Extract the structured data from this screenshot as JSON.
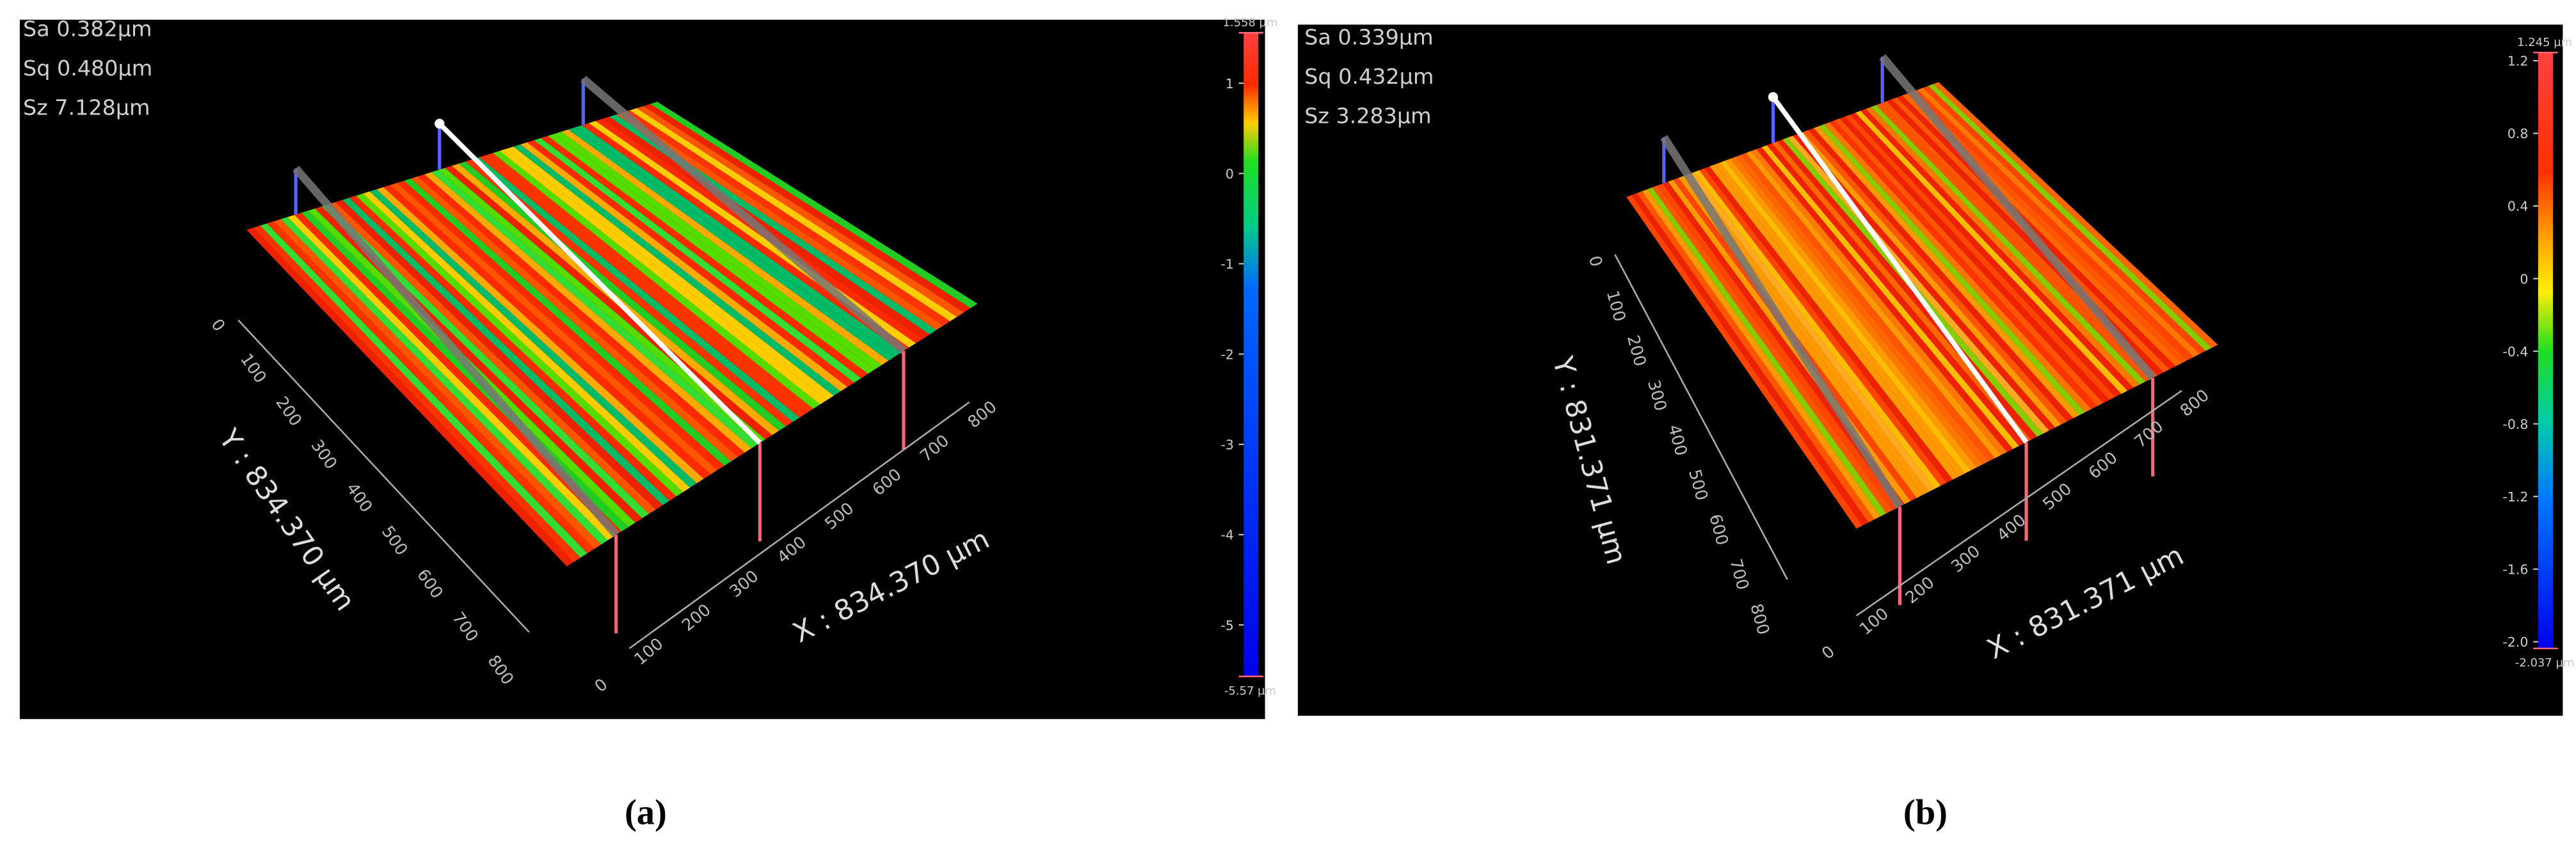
{
  "panels": [
    {
      "caption": "(a)",
      "stats": [
        "Sa 0.382µm",
        "Sq 0.480µm",
        "Sz 7.128µm"
      ],
      "colorbar": {
        "range": [
          {
            "value": -5.57,
            "label": "-5.57 µm"
          },
          {
            "value": 1.558,
            "label": "1.558 µm"
          }
        ],
        "ticks": [
          1,
          0,
          -1,
          -2,
          -3,
          -4,
          -5
        ]
      },
      "y_axis": {
        "title": "Y : 834.370 µm",
        "ticks": [
          0,
          100,
          200,
          300,
          400,
          500,
          600,
          700,
          800
        ]
      },
      "x_axis": {
        "title": "X : 834.370 µm",
        "ticks": [
          0,
          100,
          200,
          300,
          400,
          500,
          600,
          700,
          800
        ]
      }
    },
    {
      "caption": "(b)",
      "stats": [
        "Sa 0.339µm",
        "Sq 0.432µm",
        "Sz 3.283µm"
      ],
      "colorbar": {
        "range": [
          {
            "value": -2.037,
            "label": "-2.037 µm"
          },
          {
            "value": 1.245,
            "label": "1.245 µm"
          }
        ],
        "ticks": [
          1.2,
          0.8,
          0.4,
          0,
          -0.4,
          -0.8,
          -1.2,
          -1.6,
          {
            "value": -2,
            "label": "-2.0"
          }
        ]
      },
      "y_axis": {
        "title": "Y : 831.371 µm",
        "ticks": [
          0,
          100,
          200,
          300,
          400,
          500,
          600,
          700,
          800
        ]
      },
      "x_axis": {
        "title": "X : 831.371 µm",
        "ticks": [
          0,
          100,
          200,
          300,
          400,
          500,
          600,
          700,
          800
        ]
      }
    }
  ]
}
